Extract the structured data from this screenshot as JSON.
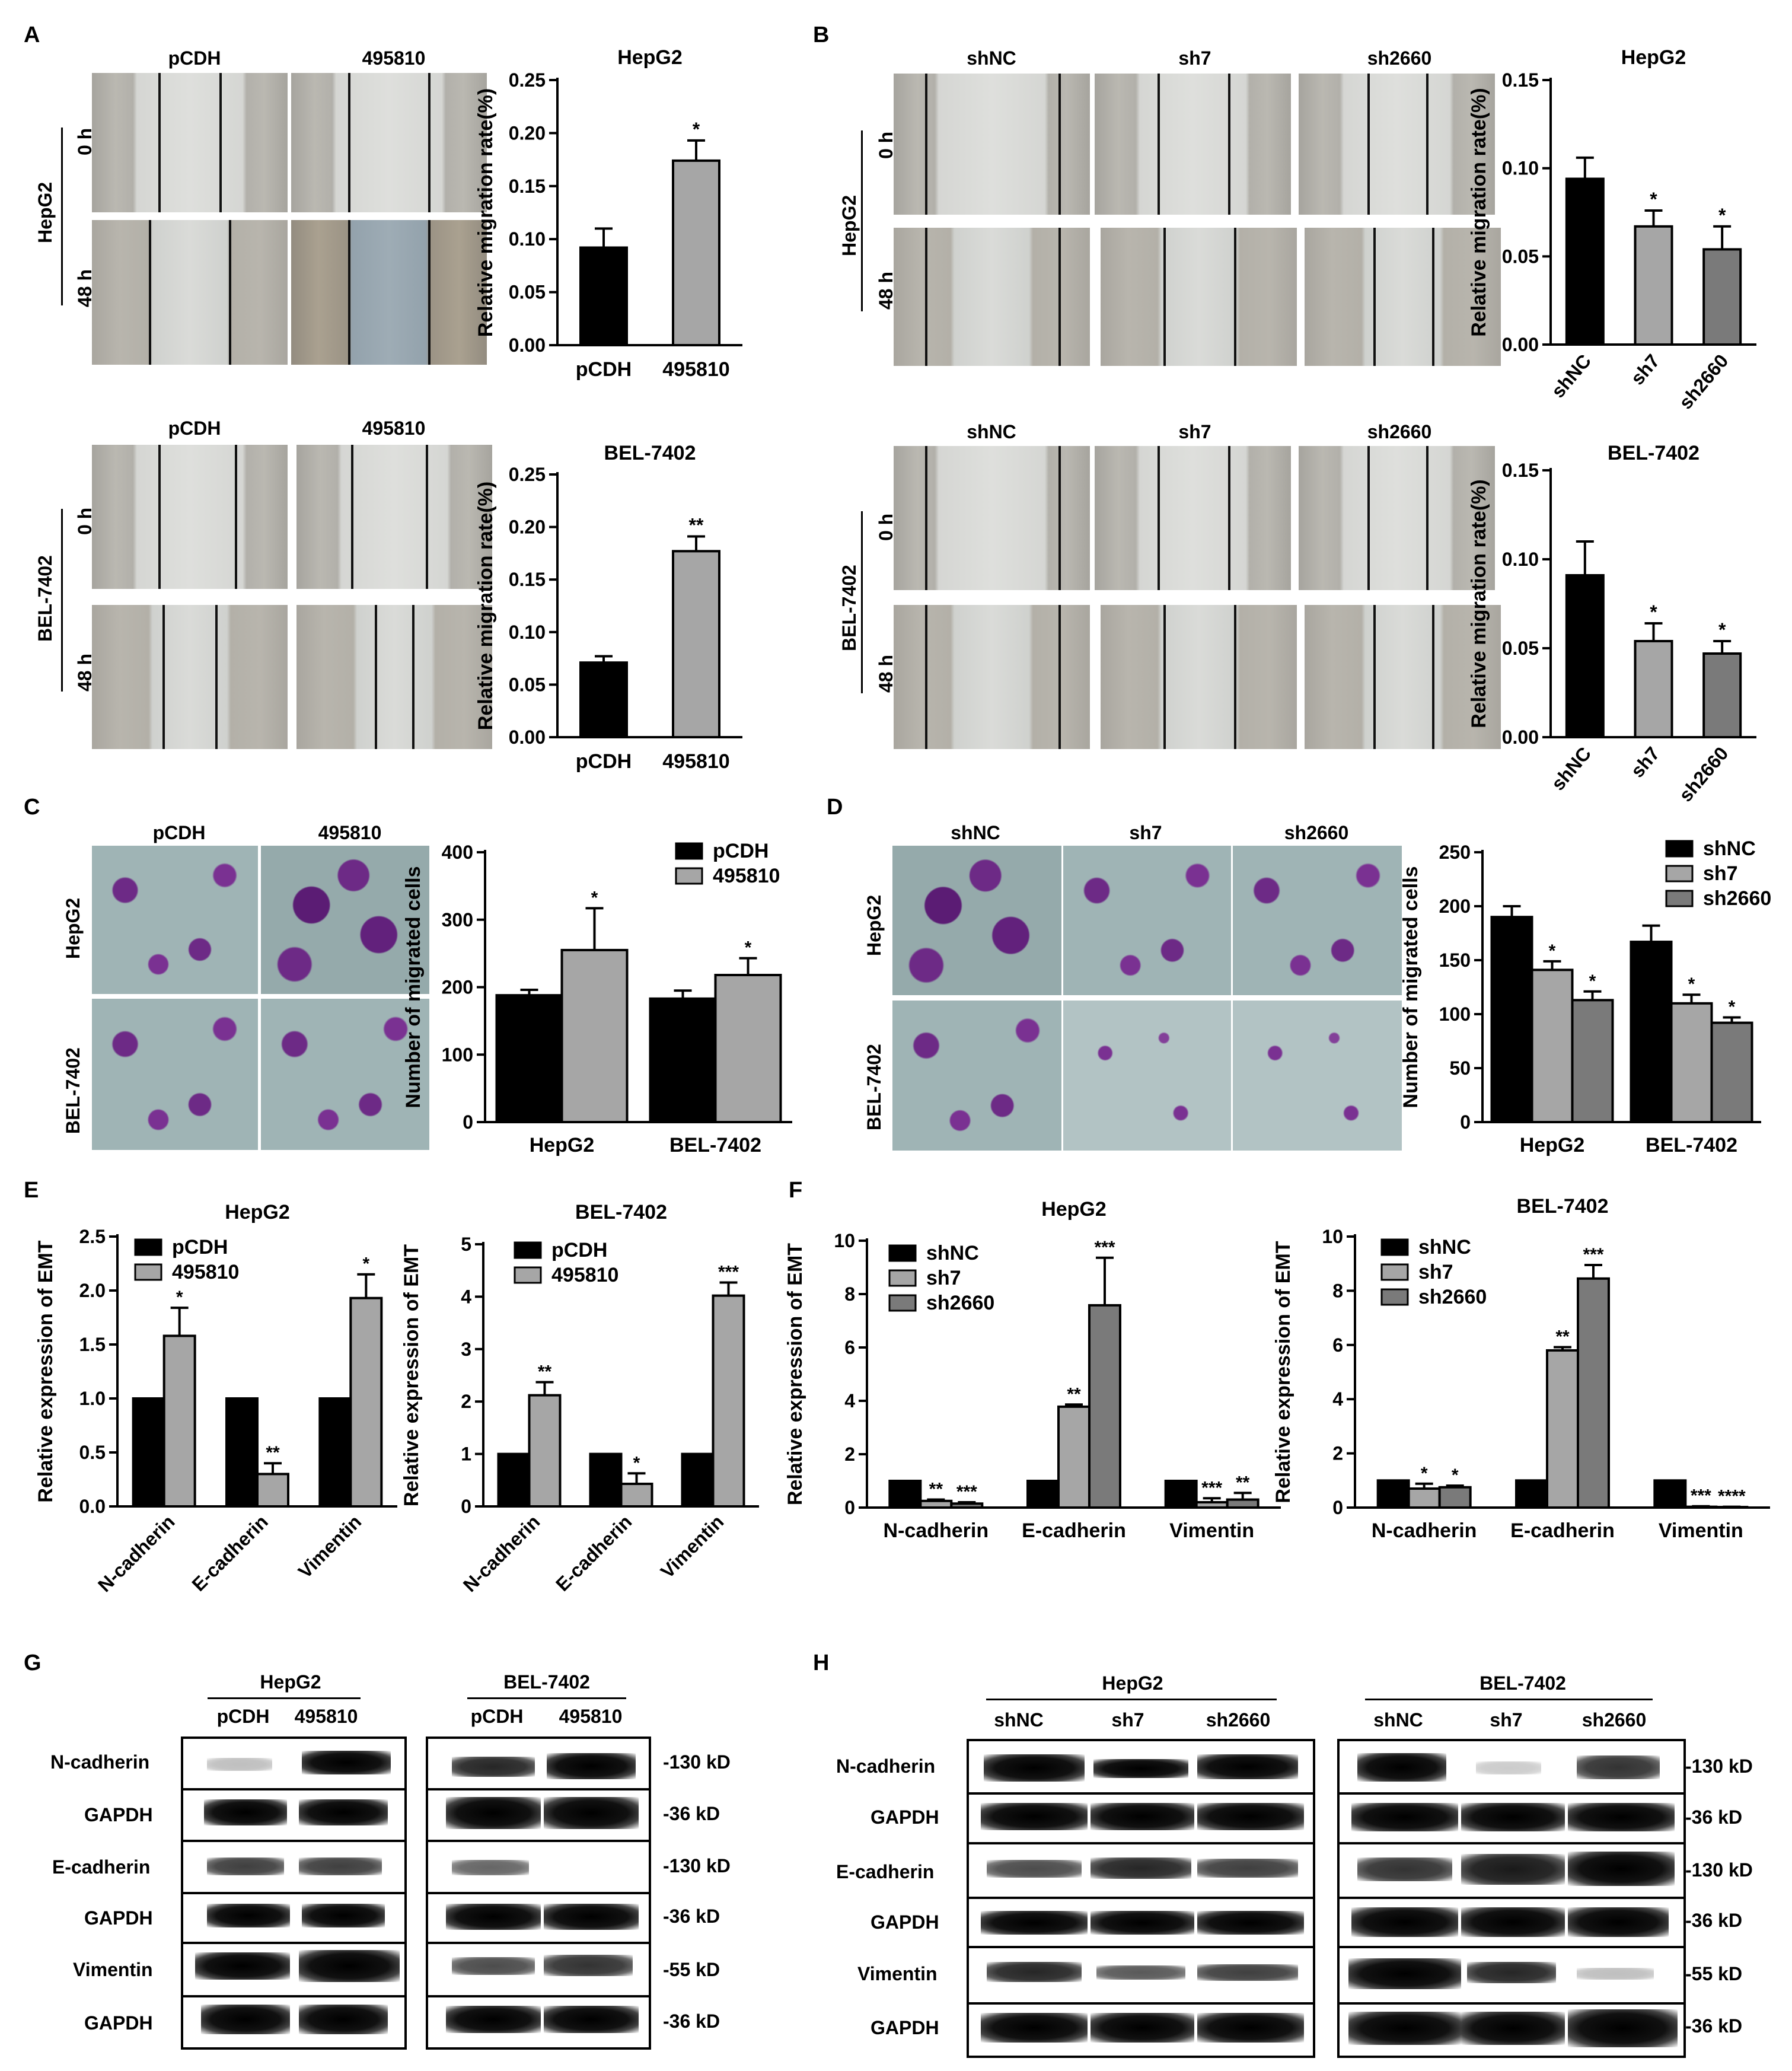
{
  "panels": {
    "A": "A",
    "B": "B",
    "C": "C",
    "D": "D",
    "E": "E",
    "F": "F",
    "G": "G",
    "H": "H"
  },
  "groups": {
    "pcdh": "pCDH",
    "g495810": "495810",
    "shnc": "shNC",
    "sh7": "sh7",
    "sh2660": "sh2660"
  },
  "cells": {
    "hepg2": "HepG2",
    "bel": "BEL-7402"
  },
  "times": {
    "t0": "0 h",
    "t48": "48 h"
  },
  "kd": {
    "k130": "-130 kD",
    "k36": "-36 kD",
    "k55": "-55 kD"
  },
  "proteins": {
    "ncad": "N-cadherin",
    "ecad": "E-cadherin",
    "vim": "Vimentin",
    "gapdh": "GAPDH"
  },
  "chart_data": [
    {
      "panel": "A",
      "type": "bar",
      "title": "HepG2",
      "ylabel": "Relative migration rate(%)",
      "categories": [
        "pCDH",
        "495810"
      ],
      "values": [
        0.092,
        0.174
      ],
      "errors": [
        0.018,
        0.019
      ],
      "ylim": [
        0,
        0.25
      ],
      "yticks": [
        "0.00",
        "0.05",
        "0.10",
        "0.15",
        "0.20",
        "0.25"
      ],
      "sig": [
        "",
        "*"
      ],
      "colors": [
        "#000000",
        "#a6a6a6"
      ]
    },
    {
      "panel": "A",
      "type": "bar",
      "title": "BEL-7402",
      "ylabel": "Relative migration rate(%)",
      "categories": [
        "pCDH",
        "495810"
      ],
      "values": [
        0.071,
        0.177
      ],
      "errors": [
        0.006,
        0.014
      ],
      "ylim": [
        0,
        0.25
      ],
      "yticks": [
        "0.00",
        "0.05",
        "0.10",
        "0.15",
        "0.20",
        "0.25"
      ],
      "sig": [
        "",
        "**"
      ],
      "colors": [
        "#000000",
        "#a6a6a6"
      ]
    },
    {
      "panel": "B",
      "type": "bar",
      "title": "HepG2",
      "ylabel": "Relative migration rate(%)",
      "categories": [
        "shNC",
        "sh7",
        "sh2660"
      ],
      "values": [
        0.094,
        0.067,
        0.054
      ],
      "errors": [
        0.012,
        0.009,
        0.013
      ],
      "ylim": [
        0,
        0.15
      ],
      "yticks": [
        "0.00",
        "0.05",
        "0.10",
        "0.15"
      ],
      "sig": [
        "",
        "*",
        "*"
      ],
      "colors": [
        "#000000",
        "#a6a6a6",
        "#7a7a7a"
      ]
    },
    {
      "panel": "B",
      "type": "bar",
      "title": "BEL-7402",
      "ylabel": "Relative migration rate(%)",
      "categories": [
        "shNC",
        "sh7",
        "sh2660"
      ],
      "values": [
        0.091,
        0.054,
        0.047
      ],
      "errors": [
        0.019,
        0.01,
        0.007
      ],
      "ylim": [
        0,
        0.15
      ],
      "yticks": [
        "0.00",
        "0.05",
        "0.10",
        "0.15"
      ],
      "sig": [
        "",
        "*",
        "*"
      ],
      "colors": [
        "#000000",
        "#a6a6a6",
        "#7a7a7a"
      ]
    },
    {
      "panel": "C",
      "type": "bar",
      "ylabel": "Number of migrated cells",
      "categories": [
        "HepG2",
        "BEL-7402"
      ],
      "series": [
        {
          "name": "pCDH",
          "values": [
            188,
            183
          ],
          "errors": [
            8,
            12
          ],
          "sig": [
            "",
            ""
          ],
          "color": "#000000"
        },
        {
          "name": "495810",
          "values": [
            255,
            218
          ],
          "errors": [
            62,
            25
          ],
          "sig": [
            "*",
            "*"
          ],
          "color": "#a6a6a6"
        }
      ],
      "ylim": [
        0,
        400
      ],
      "yticks": [
        "0",
        "100",
        "200",
        "300",
        "400"
      ]
    },
    {
      "panel": "D",
      "type": "bar",
      "ylabel": "Number of migrated cells",
      "categories": [
        "HepG2",
        "BEL-7402"
      ],
      "series": [
        {
          "name": "shNC",
          "values": [
            190,
            167
          ],
          "errors": [
            10,
            15
          ],
          "sig": [
            "",
            ""
          ],
          "color": "#000000"
        },
        {
          "name": "sh7",
          "values": [
            141,
            110
          ],
          "errors": [
            8,
            8
          ],
          "sig": [
            "*",
            "*"
          ],
          "color": "#a6a6a6"
        },
        {
          "name": "sh2660",
          "values": [
            113,
            92
          ],
          "errors": [
            8,
            5
          ],
          "sig": [
            "*",
            "*"
          ],
          "color": "#7a7a7a"
        }
      ],
      "ylim": [
        0,
        250
      ],
      "yticks": [
        "0",
        "50",
        "100",
        "150",
        "200",
        "250"
      ]
    },
    {
      "panel": "E",
      "type": "bar",
      "title": "HepG2",
      "ylabel": "Relative expression of EMT",
      "categories": [
        "N-cadherin",
        "E-cadherin",
        "Vimentin"
      ],
      "series": [
        {
          "name": "pCDH",
          "values": [
            1,
            1,
            1
          ],
          "errors": [
            0,
            0,
            0
          ],
          "sig": [
            "",
            "",
            ""
          ],
          "color": "#000000"
        },
        {
          "name": "495810",
          "values": [
            1.58,
            0.3,
            1.93
          ],
          "errors": [
            0.26,
            0.1,
            0.22
          ],
          "sig": [
            "*",
            "**",
            "*"
          ],
          "color": "#a6a6a6"
        }
      ],
      "ylim": [
        0,
        2.5
      ],
      "yticks": [
        "0.0",
        "0.5",
        "1.0",
        "1.5",
        "2.0",
        "2.5"
      ]
    },
    {
      "panel": "E",
      "type": "bar",
      "title": "BEL-7402",
      "ylabel": "Relative expression of EMT",
      "categories": [
        "N-cadherin",
        "E-cadherin",
        "Vimentin"
      ],
      "series": [
        {
          "name": "pCDH",
          "values": [
            1,
            1,
            1
          ],
          "errors": [
            0,
            0,
            0
          ],
          "sig": [
            "",
            "",
            ""
          ],
          "color": "#000000"
        },
        {
          "name": "495810",
          "values": [
            2.12,
            0.43,
            4.02
          ],
          "errors": [
            0.25,
            0.2,
            0.25
          ],
          "sig": [
            "**",
            "*",
            "***"
          ],
          "color": "#a6a6a6"
        }
      ],
      "ylim": [
        0,
        5
      ],
      "yticks": [
        "0",
        "1",
        "2",
        "3",
        "4",
        "5"
      ]
    },
    {
      "panel": "F",
      "type": "bar",
      "title": "HepG2",
      "ylabel": "Relative expression of EMT",
      "categories": [
        "N-cadherin",
        "E-cadherin",
        "Vimentin"
      ],
      "series": [
        {
          "name": "shNC",
          "values": [
            1,
            1,
            1
          ],
          "errors": [
            0,
            0,
            0
          ],
          "sig": [
            "",
            "",
            ""
          ],
          "color": "#000000"
        },
        {
          "name": "sh7",
          "values": [
            0.25,
            3.78,
            0.2
          ],
          "errors": [
            0.05,
            0.08,
            0.15
          ],
          "sig": [
            "**",
            "**",
            "***"
          ],
          "color": "#a6a6a6"
        },
        {
          "name": "sh2660",
          "values": [
            0.15,
            7.58,
            0.3
          ],
          "errors": [
            0.05,
            1.78,
            0.25
          ],
          "sig": [
            "***",
            "***",
            "**"
          ],
          "color": "#7a7a7a"
        }
      ],
      "ylim": [
        0,
        10
      ],
      "yticks": [
        "0",
        "2",
        "4",
        "6",
        "8",
        "10"
      ]
    },
    {
      "panel": "F",
      "type": "bar",
      "title": "BEL-7402",
      "ylabel": "Relative expression of EMT",
      "categories": [
        "N-cadherin",
        "E-cadherin",
        "Vimentin"
      ],
      "series": [
        {
          "name": "shNC",
          "values": [
            1,
            1,
            1
          ],
          "errors": [
            0,
            0,
            0
          ],
          "sig": [
            "",
            "",
            ""
          ],
          "color": "#000000"
        },
        {
          "name": "sh7",
          "values": [
            0.7,
            5.8,
            0.03
          ],
          "errors": [
            0.18,
            0.12,
            0.02
          ],
          "sig": [
            "*",
            "**",
            "***"
          ],
          "color": "#a6a6a6"
        },
        {
          "name": "sh2660",
          "values": [
            0.75,
            8.45,
            0.02
          ],
          "errors": [
            0.06,
            0.5,
            0.01
          ],
          "sig": [
            "*",
            "***",
            "****"
          ],
          "color": "#7a7a7a"
        }
      ],
      "ylim": [
        0,
        10
      ],
      "yticks": [
        "0",
        "2",
        "4",
        "6",
        "8",
        "10"
      ]
    }
  ]
}
